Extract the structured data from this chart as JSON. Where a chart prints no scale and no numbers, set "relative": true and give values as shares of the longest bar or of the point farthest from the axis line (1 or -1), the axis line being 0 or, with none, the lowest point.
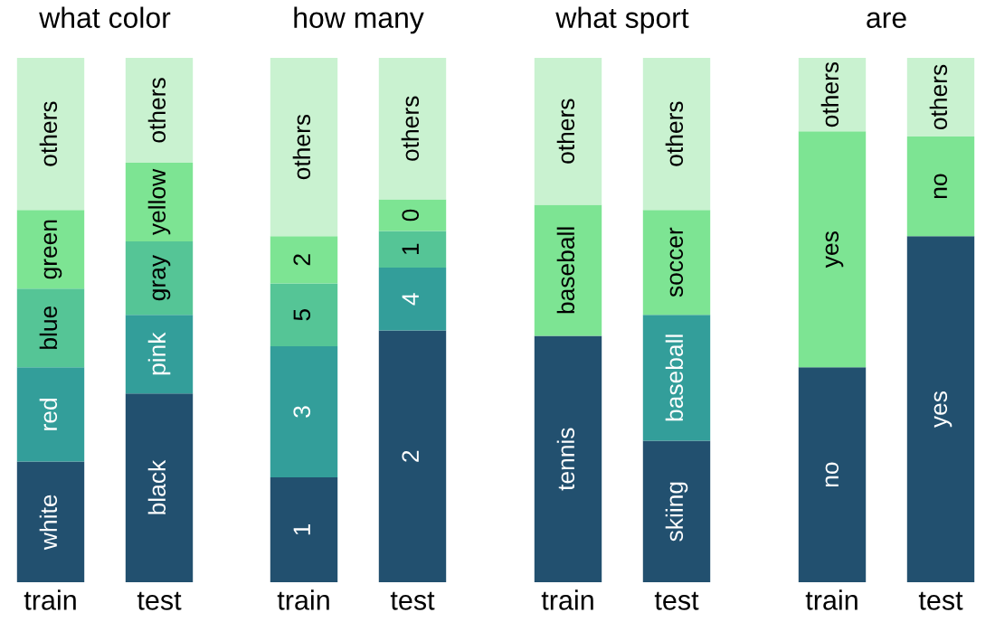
{
  "chart_data": [
    {
      "type": "bar",
      "title": "what color",
      "stacked": true,
      "relative": true,
      "categories": [
        "train",
        "test"
      ],
      "series": [
        {
          "color": "#22506f",
          "values": [
            0.23,
            0.36
          ]
        },
        {
          "color": "#339e9a",
          "values": [
            0.18,
            0.15
          ]
        },
        {
          "color": "#55c596",
          "values": [
            0.15,
            0.14
          ]
        },
        {
          "color": "#7de493",
          "values": [
            0.15,
            0.15
          ]
        },
        {
          "color": "#c9f2d0",
          "values": [
            0.29,
            0.2
          ]
        }
      ],
      "annotations": [
        "white",
        "red",
        "blue",
        "green",
        "others",
        "black",
        "pink",
        "gray",
        "yellow",
        "others"
      ]
    },
    {
      "type": "bar",
      "title": "how many",
      "stacked": true,
      "relative": true,
      "categories": [
        "train",
        "test"
      ],
      "series": [
        {
          "color": "#22506f",
          "values": [
            0.2,
            0.48
          ]
        },
        {
          "color": "#339e9a",
          "values": [
            0.25,
            0.12
          ]
        },
        {
          "color": "#55c596",
          "values": [
            0.12,
            0.07
          ]
        },
        {
          "color": "#7de493",
          "values": [
            0.09,
            0.06
          ]
        },
        {
          "color": "#c9f2d0",
          "values": [
            0.34,
            0.27
          ]
        }
      ],
      "annotations": [
        "1",
        "3",
        "5",
        "2",
        "others",
        "2",
        "4",
        "1",
        "0",
        "others"
      ]
    },
    {
      "type": "bar",
      "title": "what sport",
      "stacked": true,
      "relative": true,
      "categories": [
        "train",
        "test"
      ],
      "series": [
        {
          "color": "#22506f",
          "values": [
            0.47,
            0.27
          ]
        },
        {
          "color": "#339e9a",
          "values": [
            null,
            0.24
          ]
        },
        {
          "color": "#7de493",
          "values": [
            0.25,
            0.2
          ]
        },
        {
          "color": "#c9f2d0",
          "values": [
            0.28,
            0.29
          ]
        }
      ],
      "annotations": [
        "tennis",
        "baseball",
        "others",
        "skiing",
        "baseball",
        "soccer",
        "others"
      ]
    },
    {
      "type": "bar",
      "title": "are",
      "stacked": true,
      "relative": true,
      "categories": [
        "train",
        "test"
      ],
      "series": [
        {
          "color": "#22506f",
          "values": [
            0.41,
            0.66
          ]
        },
        {
          "color": "#7de493",
          "values": [
            0.45,
            0.19
          ]
        },
        {
          "color": "#c9f2d0",
          "values": [
            0.14,
            0.15
          ]
        }
      ],
      "annotations": [
        "no",
        "yes",
        "others",
        "yes",
        "no",
        "others"
      ]
    }
  ]
}
